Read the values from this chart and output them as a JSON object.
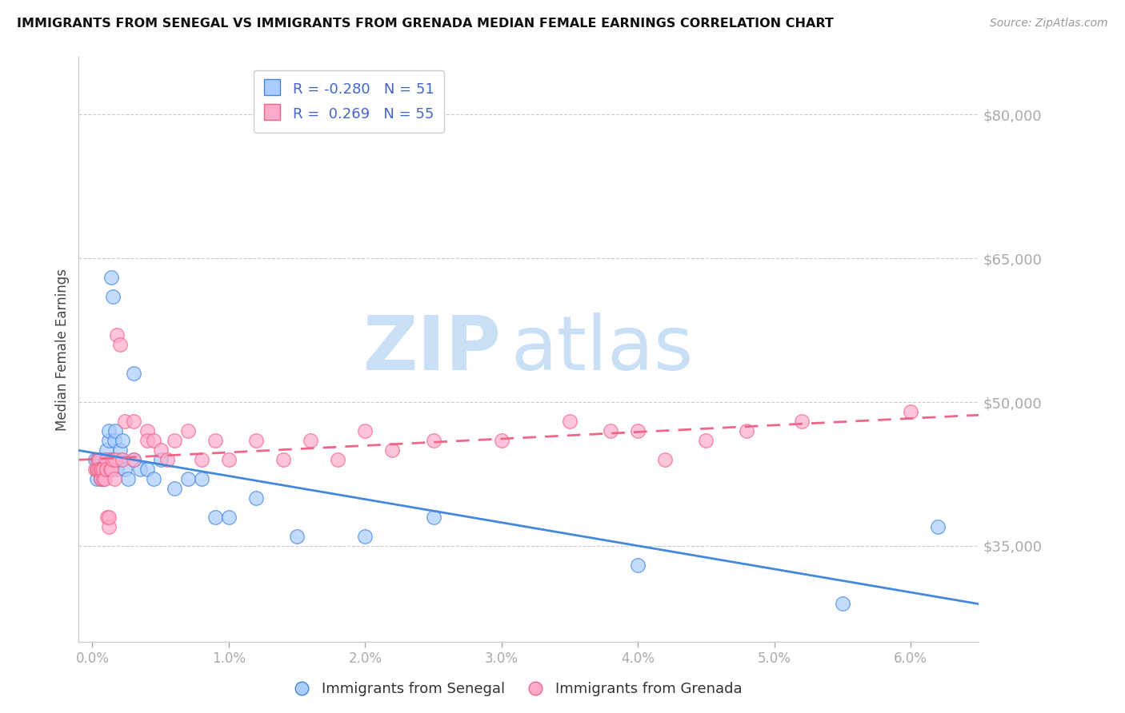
{
  "title": "IMMIGRANTS FROM SENEGAL VS IMMIGRANTS FROM GRENADA MEDIAN FEMALE EARNINGS CORRELATION CHART",
  "source": "Source: ZipAtlas.com",
  "ylabel": "Median Female Earnings",
  "xlim": [
    -0.001,
    0.065
  ],
  "ylim": [
    25000,
    86000
  ],
  "yticks": [
    35000,
    50000,
    65000,
    80000
  ],
  "xticks": [
    0.0,
    0.01,
    0.02,
    0.03,
    0.04,
    0.05,
    0.06
  ],
  "xtick_labels": [
    "0.0%",
    "1.0%",
    "2.0%",
    "3.0%",
    "4.0%",
    "5.0%",
    "6.0%"
  ],
  "ytick_labels": [
    "$35,000",
    "$50,000",
    "$65,000",
    "$80,000"
  ],
  "color_senegal": "#aaccff",
  "color_grenada": "#ffaacc",
  "color_line_senegal": "#4488dd",
  "color_line_grenada": "#ee6688",
  "color_axis_label": "#4466cc",
  "watermark_color": "#c8dff5",
  "senegal_x": [
    0.0002,
    0.0003,
    0.0003,
    0.0004,
    0.0004,
    0.0005,
    0.0005,
    0.0006,
    0.0006,
    0.0006,
    0.0007,
    0.0007,
    0.0007,
    0.0008,
    0.0008,
    0.0009,
    0.0009,
    0.001,
    0.001,
    0.001,
    0.0012,
    0.0012,
    0.0013,
    0.0014,
    0.0015,
    0.0016,
    0.0017,
    0.0018,
    0.002,
    0.002,
    0.0022,
    0.0024,
    0.0026,
    0.003,
    0.003,
    0.0035,
    0.004,
    0.0045,
    0.005,
    0.006,
    0.007,
    0.008,
    0.009,
    0.01,
    0.012,
    0.015,
    0.02,
    0.025,
    0.04,
    0.055,
    0.062
  ],
  "senegal_y": [
    44000,
    43000,
    42000,
    44000,
    43000,
    43000,
    44000,
    42000,
    43000,
    44000,
    42000,
    43000,
    44000,
    42000,
    43000,
    44000,
    43000,
    43000,
    44000,
    45000,
    46000,
    47000,
    44000,
    63000,
    61000,
    46000,
    47000,
    43000,
    44000,
    45000,
    46000,
    43000,
    42000,
    53000,
    44000,
    43000,
    43000,
    42000,
    44000,
    41000,
    42000,
    42000,
    38000,
    38000,
    40000,
    36000,
    36000,
    38000,
    33000,
    29000,
    37000
  ],
  "grenada_x": [
    0.0002,
    0.0003,
    0.0004,
    0.0004,
    0.0005,
    0.0005,
    0.0006,
    0.0006,
    0.0007,
    0.0008,
    0.0008,
    0.0009,
    0.001,
    0.001,
    0.001,
    0.0011,
    0.0012,
    0.0012,
    0.0013,
    0.0014,
    0.0015,
    0.0016,
    0.0017,
    0.0018,
    0.002,
    0.0022,
    0.0024,
    0.003,
    0.003,
    0.004,
    0.004,
    0.0045,
    0.005,
    0.0055,
    0.006,
    0.007,
    0.008,
    0.009,
    0.01,
    0.012,
    0.014,
    0.016,
    0.018,
    0.02,
    0.022,
    0.025,
    0.03,
    0.035,
    0.038,
    0.04,
    0.042,
    0.045,
    0.048,
    0.052,
    0.06
  ],
  "grenada_y": [
    43000,
    43000,
    44000,
    43000,
    44000,
    43000,
    42000,
    43000,
    43000,
    42000,
    43000,
    42000,
    43000,
    44000,
    43000,
    38000,
    37000,
    38000,
    43000,
    43000,
    44000,
    42000,
    44000,
    57000,
    56000,
    44000,
    48000,
    48000,
    44000,
    47000,
    46000,
    46000,
    45000,
    44000,
    46000,
    47000,
    44000,
    46000,
    44000,
    46000,
    44000,
    46000,
    44000,
    47000,
    45000,
    46000,
    46000,
    48000,
    47000,
    47000,
    44000,
    46000,
    47000,
    48000,
    49000
  ]
}
